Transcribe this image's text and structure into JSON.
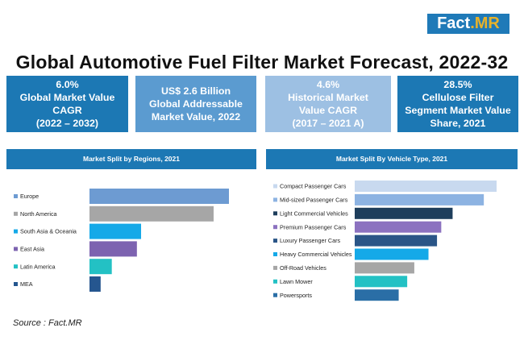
{
  "brand": {
    "name": "Fact",
    "suffix": ".MR"
  },
  "title": "Global Automotive Fuel Filter Market Forecast, 2022-32",
  "kpis": [
    {
      "text": "6.0%\nGlobal Market Value\nCAGR\n(2022 – 2032)",
      "bg": "#1c78b4"
    },
    {
      "text": "US$ 2.6 Billion\nGlobal Addressable\nMarket Value, 2022",
      "bg": "#5b9bd0"
    },
    {
      "text": "4.6%\nHistorical Market\nValue CAGR\n(2017 – 2021 A)",
      "bg": "#9dc0e3"
    },
    {
      "text": "28.5%\nCellulose Filter\nSegment Market Value\nShare, 2021",
      "bg": "#1c78b4"
    }
  ],
  "source": "Source : Fact.MR",
  "chart_data": [
    {
      "type": "bar",
      "orientation": "horizontal",
      "title": "Market Split by Regions, 2021",
      "categories": [
        "Europe",
        "North America",
        "South Asia & Oceania",
        "East Asia",
        "Latin America",
        "MEA"
      ],
      "values": [
        100,
        89,
        37,
        34,
        16,
        8
      ],
      "colors": [
        "#6d9bd2",
        "#a6a6a6",
        "#15a9e8",
        "#7d63b0",
        "#23c1c4",
        "#25568f"
      ]
    },
    {
      "type": "bar",
      "orientation": "horizontal",
      "title": "Market Split By Vehicle Type, 2021",
      "categories": [
        "Compact Passenger Cars",
        "Mid-sized Passenger Cars",
        "Light Commercial Vehicles",
        "Premium Passenger Cars",
        "Luxury Passenger Cars",
        "Heavy Commercial Vehicles",
        "Off-Road Vehicles",
        "Lawn Mower",
        "Powersports"
      ],
      "values": [
        100,
        91,
        69,
        61,
        58,
        52,
        42,
        37,
        31
      ],
      "colors": [
        "#c8d9ef",
        "#8db3e2",
        "#1e3e5c",
        "#8c72c0",
        "#2a5587",
        "#15a9e8",
        "#a6a6a6",
        "#23c1c4",
        "#2a6ea6"
      ]
    }
  ]
}
